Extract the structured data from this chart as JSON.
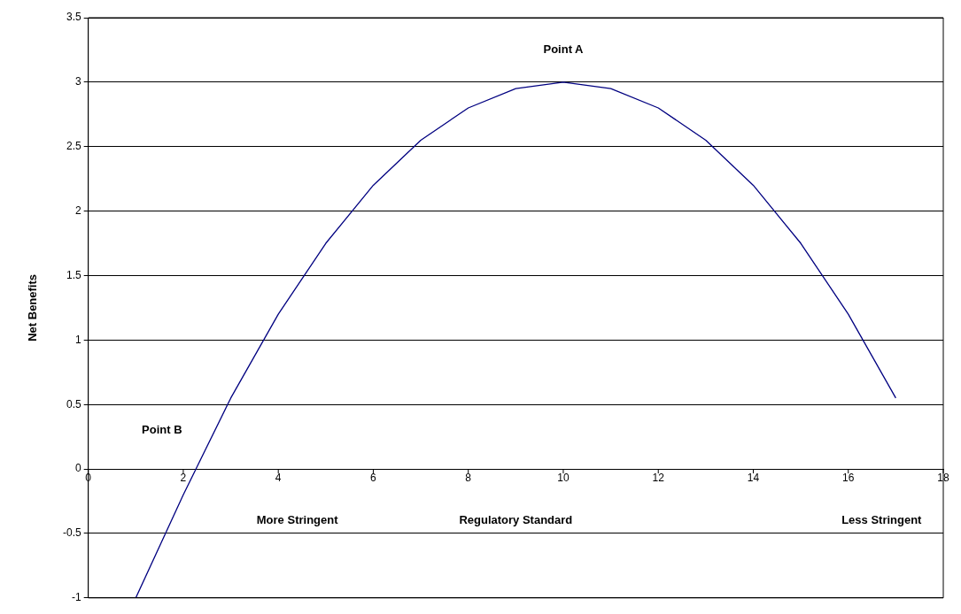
{
  "chart_data": {
    "type": "line",
    "xlabel": "Regulatory Standard",
    "ylabel": "Net Benefits",
    "x": [
      1,
      2,
      3,
      4,
      5,
      6,
      7,
      8,
      9,
      10,
      11,
      12,
      13,
      14,
      15,
      16,
      17
    ],
    "series": [
      {
        "color": "#000080",
        "values": [
          -1,
          -0.2,
          0.55,
          1.2,
          1.75,
          2.2,
          2.55,
          2.8,
          2.95,
          3,
          2.95,
          2.8,
          2.55,
          2.2,
          1.75,
          1.2,
          0.55
        ]
      }
    ],
    "xlim": [
      0,
      18
    ],
    "xticks": [
      0,
      2,
      4,
      6,
      8,
      10,
      12,
      14,
      16,
      18
    ],
    "ylim": [
      -1,
      3.5
    ],
    "yticks": [
      -1,
      -0.5,
      0,
      0.5,
      1,
      1.5,
      2,
      2.5,
      3,
      3.5
    ],
    "grid": "y",
    "marker": "none",
    "line_style": "solid",
    "legend": false,
    "annotations": [
      "Point A",
      "Point B",
      "More Stringent",
      "Less Stringent"
    ]
  }
}
